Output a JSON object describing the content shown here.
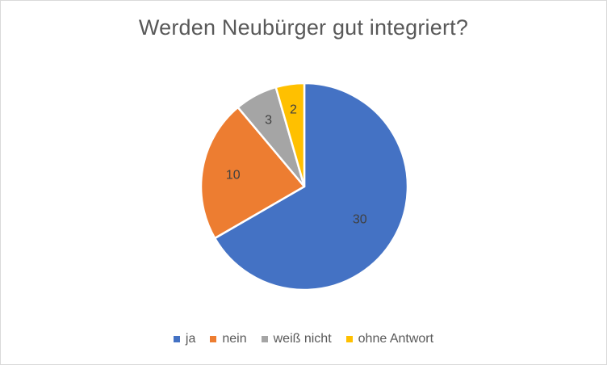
{
  "chart_data": {
    "type": "pie",
    "title": "Werden Neubürger gut integriert?",
    "categories": [
      "ja",
      "nein",
      "weiß nicht",
      "ohne Antwort"
    ],
    "values": [
      30,
      10,
      3,
      2
    ],
    "colors": [
      "#4472C4",
      "#ED7D31",
      "#A5A5A5",
      "#FFC000"
    ],
    "data_labels": [
      "30",
      "10",
      "3",
      "2"
    ],
    "legend_position": "bottom"
  }
}
